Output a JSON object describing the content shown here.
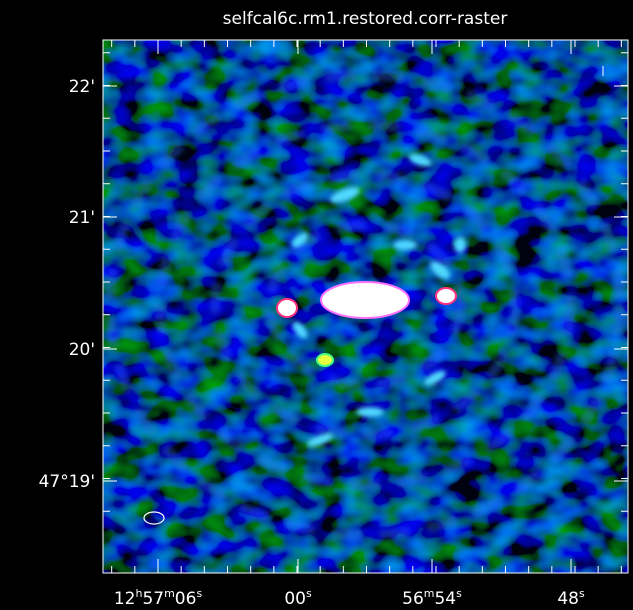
{
  "title": "selfcal6c.rm1.restored.corr-raster",
  "y_axis": {
    "labels": [
      "22'",
      "21'",
      "20'",
      "47°19'"
    ]
  },
  "x_axis": {
    "labels": [
      {
        "parts": [
          "12",
          "h",
          "57",
          "m",
          "06",
          "s"
        ]
      },
      {
        "parts": [
          "00",
          "s"
        ]
      },
      {
        "parts": [
          "56",
          "m",
          "54",
          "s"
        ]
      },
      {
        "parts": [
          "48",
          "s"
        ]
      }
    ]
  }
}
